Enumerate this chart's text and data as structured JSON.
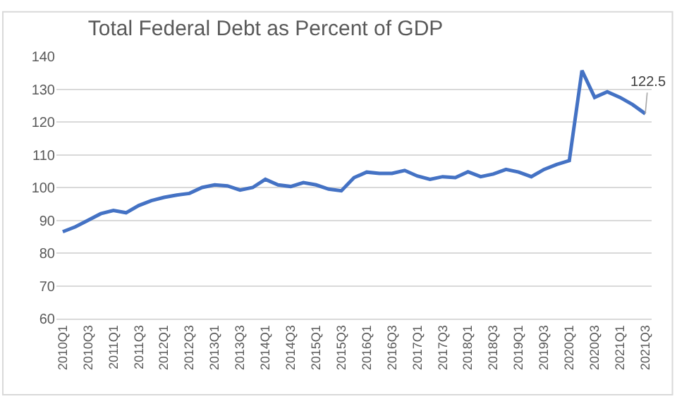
{
  "chart_data": {
    "type": "line",
    "title": "Total Federal Debt as Percent of GDP",
    "categories": [
      "2010Q1",
      null,
      "2010Q3",
      null,
      "2011Q1",
      null,
      "2011Q3",
      null,
      "2012Q1",
      null,
      "2012Q3",
      null,
      "2013Q1",
      null,
      "2013Q3",
      null,
      "2014Q1",
      null,
      "2014Q3",
      null,
      "2015Q1",
      null,
      "2015Q3",
      null,
      "2016Q1",
      null,
      "2016Q3",
      null,
      "2017Q1",
      null,
      "2017Q3",
      null,
      "2018Q1",
      null,
      "2018Q3",
      null,
      "2019Q1",
      null,
      "2019Q3",
      null,
      "2020Q1",
      null,
      "2020Q3",
      null,
      "2021Q1",
      null,
      "2021Q3"
    ],
    "series": [
      {
        "color": "#4472c4",
        "values": [
          86.5,
          88,
          90,
          92,
          93,
          92.3,
          94.5,
          96,
          97,
          97.7,
          98.2,
          100,
          100.8,
          100.5,
          99.2,
          100,
          102.5,
          100.8,
          100.3,
          101.5,
          100.8,
          99.5,
          99,
          103,
          104.7,
          104.3,
          104.3,
          105.2,
          103.5,
          102.5,
          103.3,
          103,
          104.8,
          103.3,
          104.1,
          105.5,
          104.7,
          103.3,
          105.5,
          107,
          108.2,
          135.7,
          127.5,
          129.2,
          127.5,
          125.3,
          122.5
        ],
        "value_labels": [
          null,
          null,
          null,
          null,
          null,
          null,
          null,
          null,
          null,
          null,
          null,
          null,
          null,
          null,
          null,
          null,
          null,
          null,
          null,
          null,
          null,
          null,
          null,
          null,
          null,
          null,
          null,
          null,
          null,
          null,
          null,
          null,
          null,
          null,
          null,
          null,
          null,
          null,
          null,
          null,
          null,
          null,
          null,
          null,
          null,
          null,
          "122.5"
        ]
      }
    ],
    "ylim": [
      60,
      140
    ],
    "yticks": [
      60,
      70,
      80,
      90,
      100,
      110,
      120,
      130,
      140
    ],
    "grid": "y",
    "line_style": "solid"
  }
}
